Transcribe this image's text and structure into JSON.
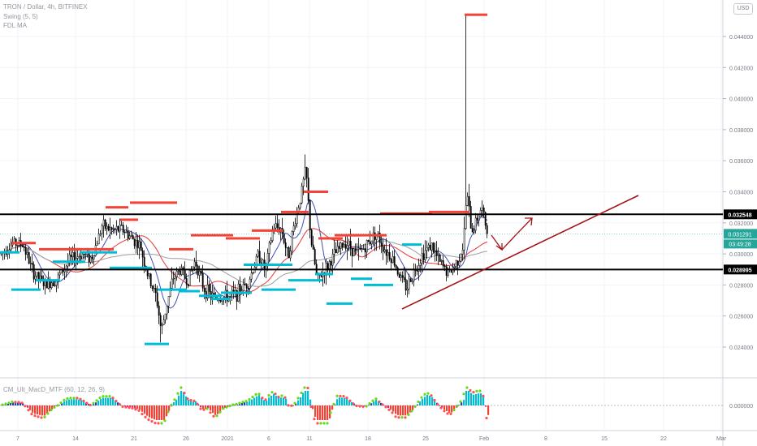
{
  "chart_data": [
    {
      "type": "candlestick",
      "title": "TRON / Dollar, 4h, BITFINEX",
      "indicators": [
        "Swing (5, 5)",
        "FDL MA"
      ],
      "currency": "USD",
      "ylim": [
        0.022,
        0.048
      ],
      "y_ticks": [
        "0.024000",
        "0.026000",
        "0.028000",
        "0.030000",
        "0.032000",
        "0.034000",
        "0.036000",
        "0.038000",
        "0.040000",
        "0.042000",
        "0.044000"
      ],
      "x_ticks": [
        "7",
        "14",
        "21",
        "26",
        "2021",
        "6",
        "11",
        "18",
        "25",
        "Feb",
        "8",
        "15",
        "22",
        "Mar"
      ],
      "horizontal_levels": [
        {
          "label": "0.032548",
          "value": 0.032548,
          "color": "#000000"
        },
        {
          "label": "0.028995",
          "value": 0.028995,
          "color": "#000000"
        }
      ],
      "last_price": {
        "label": "0.031291",
        "value": 0.031291,
        "countdown": "03:49:28",
        "color": "#26a69a"
      },
      "price_path": [
        [
          0,
          0.03
        ],
        [
          15,
          0.0307
        ],
        [
          28,
          0.0306
        ],
        [
          40,
          0.0288
        ],
        [
          55,
          0.028
        ],
        [
          70,
          0.0284
        ],
        [
          85,
          0.0296
        ],
        [
          100,
          0.03
        ],
        [
          112,
          0.0297
        ],
        [
          125,
          0.0318
        ],
        [
          138,
          0.0315
        ],
        [
          150,
          0.0316
        ],
        [
          162,
          0.031
        ],
        [
          172,
          0.0305
        ],
        [
          182,
          0.0285
        ],
        [
          192,
          0.0272
        ],
        [
          198,
          0.025
        ],
        [
          205,
          0.0268
        ],
        [
          213,
          0.0285
        ],
        [
          222,
          0.029
        ],
        [
          230,
          0.0282
        ],
        [
          240,
          0.0296
        ],
        [
          250,
          0.0278
        ],
        [
          262,
          0.0272
        ],
        [
          275,
          0.0272
        ],
        [
          290,
          0.0274
        ],
        [
          305,
          0.0282
        ],
        [
          318,
          0.03
        ],
        [
          326,
          0.0289
        ],
        [
          336,
          0.0318
        ],
        [
          346,
          0.0316
        ],
        [
          354,
          0.0298
        ],
        [
          362,
          0.032
        ],
        [
          370,
          0.0338
        ],
        [
          376,
          0.0355
        ],
        [
          382,
          0.031
        ],
        [
          390,
          0.0283
        ],
        [
          400,
          0.029
        ],
        [
          412,
          0.03
        ],
        [
          425,
          0.0308
        ],
        [
          438,
          0.03
        ],
        [
          450,
          0.0305
        ],
        [
          462,
          0.0314
        ],
        [
          472,
          0.0304
        ],
        [
          484,
          0.0296
        ],
        [
          492,
          0.0285
        ],
        [
          500,
          0.0278
        ],
        [
          510,
          0.029
        ],
        [
          520,
          0.03
        ],
        [
          530,
          0.0306
        ],
        [
          540,
          0.0295
        ],
        [
          552,
          0.0287
        ],
        [
          562,
          0.0295
        ],
        [
          570,
          0.0305
        ],
        [
          574,
          0.034
        ],
        [
          580,
          0.0314
        ],
        [
          586,
          0.0322
        ],
        [
          592,
          0.033
        ],
        [
          600,
          0.0313
        ]
      ],
      "swing_highs": [
        0.0307,
        0.0303,
        0.0303,
        0.033,
        0.0322,
        0.0333,
        0.0303,
        0.0312,
        0.031,
        0.0315,
        0.0327,
        0.034,
        0.0366,
        0.031,
        0.0312,
        0.0312,
        0.0326,
        0.0327,
        0.0454
      ],
      "swing_lows": [
        0.0301,
        0.0277,
        0.0283,
        0.0295,
        0.0301,
        0.0291,
        0.0242,
        0.0277,
        0.0276,
        0.0273,
        0.0271,
        0.0275,
        0.0293,
        0.0277,
        0.0283,
        0.0287,
        0.0268,
        0.0284,
        0.028,
        0.0306
      ]
    },
    {
      "type": "histogram",
      "title": "CM_Ult_MacD_MTF (60, 12, 26, 9)",
      "y_ticks": [
        "0.000000"
      ]
    }
  ]
}
